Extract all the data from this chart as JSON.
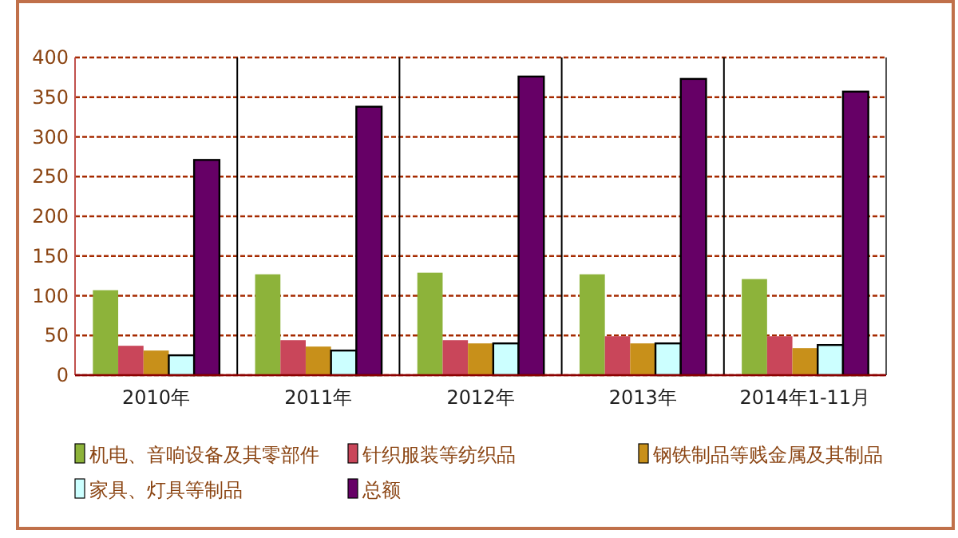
{
  "chart_data": {
    "type": "bar",
    "categories": [
      "2010年",
      "2011年",
      "2012年",
      "2013年",
      "2014年1-11月"
    ],
    "series": [
      {
        "name": "机电、音响设备及其零部件",
        "color": "#8db33a",
        "values": [
          107,
          127,
          129,
          127,
          121
        ]
      },
      {
        "name": "针织服装等纺织品",
        "color": "#c9465a",
        "values": [
          37,
          44,
          44,
          49,
          49
        ]
      },
      {
        "name": "钢铁制品等贱金属及其制品",
        "color": "#c8901a",
        "values": [
          31,
          36,
          40,
          40,
          34
        ]
      },
      {
        "name": "家具、灯具等制品",
        "color": "#ccffff",
        "values": [
          25,
          31,
          40,
          40,
          38
        ]
      },
      {
        "name": "总额",
        "color": "#660066",
        "values": [
          271,
          338,
          376,
          373,
          357
        ]
      }
    ],
    "ylim": [
      0,
      400
    ],
    "yticks": [
      0,
      50,
      100,
      150,
      200,
      250,
      300,
      350,
      400
    ],
    "grid": "y",
    "legend": "bottom"
  }
}
